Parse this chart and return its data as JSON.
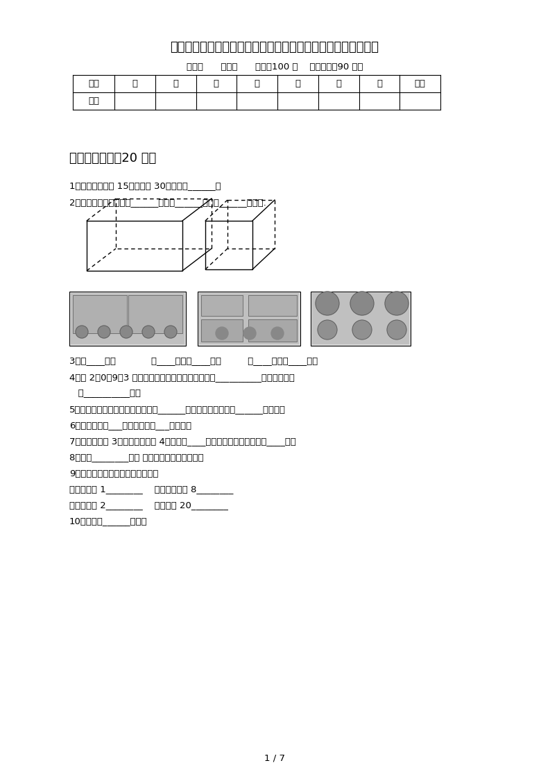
{
  "title": "部编人教版二年级数学下册第三次月考试卷及答案（学生专用）",
  "subtitle": "班级：      姓名：      满分：100 分    考试时间：90 分钟",
  "table_headers": [
    "题序",
    "一",
    "二",
    "三",
    "四",
    "五",
    "六",
    "七",
    "总分"
  ],
  "table_row2": [
    "得分",
    "",
    "",
    "",
    "",
    "",
    "",
    "",
    ""
  ],
  "section1_title": "一、填空题。（20 分）",
  "q1": "1、甲数比乙数少 15，乙数是 30，甲数是______。",
  "q2": "2、长方体和正方体都有______个面，______条棱，______个顶点.",
  "q3": "3、（____）元            （____）元（____）角         （____）元（____）角",
  "q4a": "4、用 2、0、9、3 组成一个四位数，其中最大的数（__________），最小的是",
  "q4b": "   （__________）。",
  "q5": "5、三位数除以一位数，商可能是（______）位数，也可能是（______）位数。",
  "q6": "6、一个角有（___）个顶点，（___）条边。",
  "q7": "7、一个因数是 3，另一个因数是 4，积是（____），计算时用的口诀是（____）。",
  "q8": "8、是由________个和 一样大的三角形组成的。",
  "q9": "9、在括号里填上合适的长度单位。",
  "q9a": "手指宽约是 1________    一棵大树高约 8________",
  "q9b": "教室的门高 2________    铅笔长约 20________",
  "q10": "10、图中有______个角。",
  "page_label": "1 / 7",
  "bg_color": "#ffffff",
  "text_color": "#000000"
}
